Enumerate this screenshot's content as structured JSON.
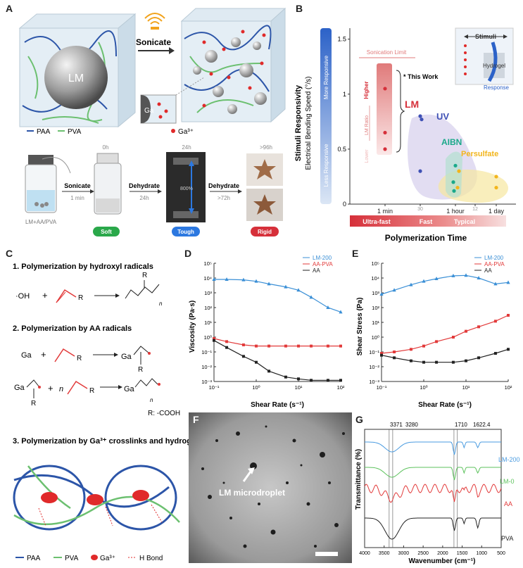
{
  "panels": {
    "A": {
      "letter": "A",
      "lm_label": "LM",
      "sonicate": "Sonicate",
      "ga_label": "Ga",
      "ga3_label": "Ga³⁺",
      "legend_paa": "PAA",
      "legend_pva": "PVA",
      "timeline": {
        "t0": "0h",
        "t24": "24h",
        "t96": ">96h",
        "step1": "Sonicate",
        "step1_sub": "1 min",
        "step2": "Dehydrate",
        "step2_sub": "24h",
        "step3": "Dehydrate",
        "step3_sub": ">72h",
        "vial_label": "LM+AA/PVA",
        "stretch_label": "800%",
        "badges": [
          "Soft",
          "Tough",
          "Rigid"
        ]
      }
    },
    "B": {
      "letter": "B",
      "ylabel_bold": "Stimuli Responsivity",
      "ylabel": "Electrical Bending Speed (°/s)",
      "bar_top": "More Responsive",
      "bar_bottom": "Less Responsive",
      "sonication_limit": "Sonication Limit",
      "higher": "Higher",
      "lm_ratio": "LM Ratio",
      "lower": "Lower",
      "this_work": "* This Work",
      "groups": [
        "LM",
        "UV",
        "AIBN",
        "Persulfate"
      ],
      "inset_stimuli": "Stimuli",
      "inset_hydrogel": "Hydrogel",
      "inset_response": "Response",
      "xticks": [
        "1 min",
        "30",
        "1 hour",
        "12",
        "1 day"
      ],
      "yticks": [
        "0",
        "0.5",
        "1",
        "1.5"
      ],
      "speed_bar": [
        "Ultra-fast",
        "Fast",
        "Typical"
      ],
      "xlabel": "Polymerization Time"
    },
    "C": {
      "letter": "C",
      "title1": "1. Polymerization by hydroxyl radicals",
      "title2": "2. Polymerization by AA radicals",
      "title3": "3. Polymerization by Ga³⁺ crosslinks and hydrogen bonds",
      "oh": "·OH",
      "plus": "+",
      "r": "R",
      "ga": "Ga",
      "n": "n",
      "rnote": "R: -COOH",
      "legend": [
        "PAA",
        "PVA",
        "Ga³⁺",
        "H Bond"
      ]
    },
    "D": {
      "letter": "D",
      "ylabel": "Viscosity (Pa·s)",
      "xlabel": "Shear Rate (s⁻¹)",
      "legend": [
        "LM-200",
        "AA-PVA",
        "AA"
      ]
    },
    "E": {
      "letter": "E",
      "ylabel": "Shear Stress (Pa)",
      "xlabel": "Shear Rate (s⁻¹)",
      "legend": [
        "LM-200",
        "AA-PVA",
        "AA"
      ]
    },
    "F": {
      "letter": "F",
      "label": "LM microdroplet"
    },
    "G": {
      "letter": "G",
      "ylabel": "Transmittance (%)",
      "xlabel": "Wavenumber (cm⁻¹)",
      "peaks": [
        "3371",
        "3280",
        "1710",
        "1622.4"
      ],
      "curves": [
        "LM-200",
        "LM-0",
        "AA",
        "PVA"
      ],
      "xticks": [
        "4000",
        "3500",
        "3000",
        "2500",
        "2000",
        "1500",
        "1000",
        "500"
      ]
    }
  },
  "chart_data": [
    {
      "id": "B",
      "type": "scatter",
      "xlabel": "Polymerization Time",
      "ylabel": "Electrical Bending Speed (°/s)",
      "ylim": [
        0,
        1.6
      ],
      "x_ticks": [
        "1 min",
        "30",
        "1 hour",
        "12",
        "1 day"
      ],
      "series": [
        {
          "name": "LM",
          "color": "#d6303a",
          "x": [
            "1 min",
            "1 min",
            "1 min"
          ],
          "y": [
            1.05,
            0.65,
            0.5
          ]
        },
        {
          "name": "UV",
          "color": "#3f51b5",
          "x": [
            "30",
            "30",
            "30"
          ],
          "y": [
            0.8,
            0.77,
            0.3
          ]
        },
        {
          "name": "AIBN",
          "color": "#1aa98a",
          "x": [
            "1 hour",
            "1 hour",
            "1 hour"
          ],
          "y": [
            0.35,
            0.2,
            0.12
          ]
        },
        {
          "name": "Persulfate",
          "color": "#f2b51c",
          "x": [
            "1 hour",
            "1 hour",
            "1 day",
            "1 day"
          ],
          "y": [
            0.3,
            0.15,
            0.25,
            0.15
          ]
        }
      ]
    },
    {
      "id": "D",
      "type": "line",
      "xscale": "log",
      "yscale": "log",
      "xlabel": "Shear Rate (s⁻¹)",
      "ylabel": "Viscosity (Pa·s)",
      "xlim": [
        0.1,
        100
      ],
      "ylim": [
        0.001,
        100000
      ],
      "x_ticks": [
        "10⁻¹",
        "10⁰",
        "10¹",
        "10²"
      ],
      "y_ticks": [
        "10⁻³",
        "10⁻²",
        "10⁻¹",
        "10⁰",
        "10¹",
        "10²",
        "10³",
        "10⁴",
        "10⁵"
      ],
      "series": [
        {
          "name": "LM-200",
          "color": "#3a8fd6",
          "x": [
            0.1,
            0.2,
            0.5,
            1,
            2,
            5,
            10,
            20,
            50,
            100
          ],
          "y": [
            8000,
            8000,
            7500,
            6000,
            4000,
            2500,
            1500,
            500,
            100,
            50
          ]
        },
        {
          "name": "AA-PVA",
          "color": "#e23a3a",
          "x": [
            0.1,
            0.2,
            0.5,
            1,
            2,
            5,
            10,
            20,
            50,
            100
          ],
          "y": [
            0.8,
            0.5,
            0.3,
            0.25,
            0.25,
            0.25,
            0.25,
            0.25,
            0.25,
            0.25
          ]
        },
        {
          "name": "AA",
          "color": "#222222",
          "x": [
            0.1,
            0.2,
            0.5,
            1,
            2,
            5,
            10,
            20,
            50,
            100
          ],
          "y": [
            0.6,
            0.2,
            0.05,
            0.02,
            0.005,
            0.002,
            0.0015,
            0.0012,
            0.0012,
            0.0012
          ]
        }
      ]
    },
    {
      "id": "E",
      "type": "line",
      "xscale": "log",
      "yscale": "log",
      "xlabel": "Shear Rate (s⁻¹)",
      "ylabel": "Shear Stress (Pa)",
      "xlim": [
        0.1,
        100
      ],
      "ylim": [
        0.001,
        100000
      ],
      "x_ticks": [
        "10⁻¹",
        "10⁰",
        "10¹",
        "10²"
      ],
      "y_ticks": [
        "10⁻³",
        "10⁻²",
        "10⁻¹",
        "10⁰",
        "10¹",
        "10²",
        "10³",
        "10⁴",
        "10⁵"
      ],
      "series": [
        {
          "name": "LM-200",
          "color": "#3a8fd6",
          "x": [
            0.1,
            0.2,
            0.5,
            1,
            2,
            5,
            10,
            20,
            50,
            100
          ],
          "y": [
            800,
            1500,
            3500,
            6000,
            9000,
            14000,
            15000,
            10000,
            4000,
            5000
          ]
        },
        {
          "name": "AA-PVA",
          "color": "#e23a3a",
          "x": [
            0.1,
            0.2,
            0.5,
            1,
            2,
            5,
            10,
            20,
            50,
            100
          ],
          "y": [
            0.08,
            0.1,
            0.15,
            0.25,
            0.5,
            1,
            2.5,
            5,
            12,
            30
          ]
        },
        {
          "name": "AA",
          "color": "#222222",
          "x": [
            0.1,
            0.2,
            0.5,
            1,
            2,
            5,
            10,
            20,
            50,
            100
          ],
          "y": [
            0.06,
            0.04,
            0.025,
            0.02,
            0.02,
            0.02,
            0.025,
            0.04,
            0.08,
            0.15
          ]
        }
      ]
    },
    {
      "id": "G",
      "type": "line",
      "xlabel": "Wavenumber (cm⁻¹)",
      "ylabel": "Transmittance (%)",
      "xlim": [
        4000,
        500
      ],
      "x_ticks": [
        "4000",
        "3500",
        "3000",
        "2500",
        "2000",
        "1500",
        "1000",
        "500"
      ],
      "series": [
        {
          "name": "LM-200",
          "color": "#4a9be0"
        },
        {
          "name": "LM-0",
          "color": "#5cc25c"
        },
        {
          "name": "AA",
          "color": "#e23a3a"
        },
        {
          "name": "PVA",
          "color": "#222222"
        }
      ]
    }
  ]
}
